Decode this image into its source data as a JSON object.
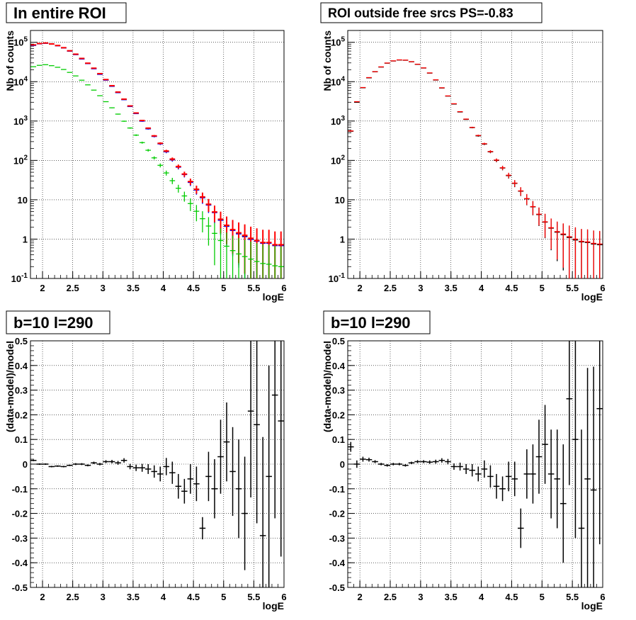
{
  "chart_data": [
    {
      "type": "histogram",
      "title": "In entire ROI",
      "xlabel": "logE",
      "ylabel": "Nb of counts",
      "xlim": [
        1.8,
        6.0
      ],
      "ylim": [
        0.1,
        200000
      ],
      "log_y": true,
      "grid": true,
      "x_ticks": [
        "2",
        "2.5",
        "3",
        "3.5",
        "4",
        "4.5",
        "5",
        "5.5",
        "6"
      ],
      "y_ticks": [
        "10^-1",
        "1",
        "10",
        "10^2",
        "10^3",
        "10^4",
        "10^5"
      ],
      "bin_width": 0.1,
      "x": [
        1.85,
        1.95,
        2.05,
        2.15,
        2.25,
        2.35,
        2.45,
        2.55,
        2.65,
        2.75,
        2.85,
        2.95,
        3.05,
        3.15,
        3.25,
        3.35,
        3.45,
        3.55,
        3.65,
        3.75,
        3.85,
        3.95,
        4.05,
        4.15,
        4.25,
        4.35,
        4.45,
        4.55,
        4.65,
        4.75,
        4.85,
        4.95,
        5.05,
        5.15,
        5.25,
        5.35,
        5.45,
        5.55,
        5.65,
        5.75,
        5.85,
        5.95
      ],
      "series": [
        {
          "color": "#000000",
          "values": [
            85000,
            92000,
            95000,
            90000,
            82000,
            72000,
            60000,
            49000,
            38000,
            29000,
            21500,
            15500,
            11000,
            7700,
            5300,
            3500,
            2350,
            1550,
            1000,
            640,
            410,
            265,
            168,
            105,
            68,
            44,
            28,
            18,
            11.5,
            7.5,
            4.8,
            3.1,
            2.2,
            1.7,
            1.4,
            1.2,
            1.0,
            0.9,
            0.8,
            0.8,
            0.7,
            0.7
          ]
        },
        {
          "color": "#0000ff",
          "values": [
            83000,
            91000,
            94000,
            89500,
            81500,
            71500,
            59500,
            48500,
            37500,
            28700,
            21200,
            15300,
            10900,
            7600,
            5250,
            3480,
            2330,
            1540,
            990,
            630,
            405,
            262,
            165,
            103,
            67,
            43.5,
            27.5,
            17.6,
            11.2,
            7.3,
            4.7,
            3.0,
            2.1,
            1.65,
            1.35,
            1.15,
            0.98,
            0.88,
            0.78,
            0.78,
            0.68,
            0.68
          ]
        },
        {
          "color": "#ff0000",
          "values": [
            86000,
            93000,
            96000,
            91000,
            83000,
            73000,
            61000,
            50000,
            39000,
            29500,
            22000,
            16000,
            11300,
            7900,
            5450,
            3600,
            2420,
            1600,
            1030,
            660,
            420,
            272,
            173,
            108,
            70,
            45,
            29,
            18.5,
            11.8,
            7.7,
            4.9,
            3.2,
            2.25,
            1.75,
            1.45,
            1.25,
            1.05,
            0.92,
            0.82,
            0.82,
            0.72,
            0.72
          ]
        },
        {
          "color": "#00cc00",
          "values": [
            24000,
            26000,
            27000,
            25500,
            23200,
            20400,
            17200,
            14000,
            10900,
            8300,
            6100,
            4400,
            3100,
            2170,
            1500,
            990,
            665,
            438,
            283,
            181,
            116,
            75,
            48,
            30.5,
            19.6,
            12.5,
            8.0,
            5.1,
            3.3,
            2.15,
            1.4,
            0.92,
            0.66,
            0.51,
            0.42,
            0.36,
            0.31,
            0.27,
            0.24,
            0.23,
            0.21,
            0.2
          ]
        }
      ]
    },
    {
      "type": "histogram",
      "title": "ROI outside free srcs PS=-0.83",
      "xlabel": "logE",
      "ylabel": "Nb of counts",
      "xlim": [
        1.8,
        6.0
      ],
      "ylim": [
        0.1,
        200000
      ],
      "log_y": true,
      "grid": true,
      "x_ticks": [
        "2",
        "2.5",
        "3",
        "3.5",
        "4",
        "4.5",
        "5",
        "5.5",
        "6"
      ],
      "y_ticks": [
        "10^-1",
        "1",
        "10",
        "10^2",
        "10^3",
        "10^4",
        "10^5"
      ],
      "bin_width": 0.1,
      "x": [
        1.85,
        1.95,
        2.05,
        2.15,
        2.25,
        2.35,
        2.45,
        2.55,
        2.65,
        2.75,
        2.85,
        2.95,
        3.05,
        3.15,
        3.25,
        3.35,
        3.45,
        3.55,
        3.65,
        3.75,
        3.85,
        3.95,
        4.05,
        4.15,
        4.25,
        4.35,
        4.45,
        4.55,
        4.65,
        4.75,
        4.85,
        4.95,
        5.05,
        5.15,
        5.25,
        5.35,
        5.45,
        5.55,
        5.65,
        5.75,
        5.85,
        5.95
      ],
      "series": [
        {
          "color": "#000000",
          "values": [
            550,
            3000,
            7000,
            12500,
            17800,
            23500,
            29500,
            33500,
            35500,
            35000,
            32000,
            27500,
            22200,
            16500,
            11000,
            6900,
            4300,
            2700,
            1700,
            1100,
            680,
            420,
            260,
            165,
            100,
            64,
            41,
            26,
            16.5,
            10.5,
            6.6,
            4.2,
            2.7,
            1.9,
            1.5,
            1.3,
            1.1,
            0.95,
            0.85,
            0.82,
            0.75,
            0.72
          ]
        },
        {
          "color": "#ff0000",
          "values": [
            560,
            3100,
            7100,
            12700,
            18000,
            23800,
            29800,
            33800,
            35800,
            35300,
            32300,
            27800,
            22400,
            16700,
            11150,
            7000,
            4350,
            2750,
            1730,
            1120,
            690,
            430,
            265,
            168,
            102,
            65,
            42,
            26.5,
            16.8,
            10.7,
            6.7,
            4.3,
            2.75,
            1.95,
            1.55,
            1.35,
            1.15,
            1.0,
            0.88,
            0.85,
            0.78,
            0.75
          ]
        }
      ]
    },
    {
      "type": "histogram",
      "title": "b=10 l=290",
      "xlabel": "logE",
      "ylabel": "(data-model)/model",
      "xlim": [
        1.8,
        6.0
      ],
      "ylim": [
        -0.5,
        0.5
      ],
      "grid": true,
      "x_ticks": [
        "2",
        "2.5",
        "3",
        "3.5",
        "4",
        "4.5",
        "5",
        "5.5",
        "6"
      ],
      "y_ticks": [
        "-0.5",
        "-0.4",
        "-0.3",
        "-0.2",
        "-0.1",
        "0",
        "0.1",
        "0.2",
        "0.3",
        "0.4",
        "0.5"
      ],
      "bin_width": 0.1,
      "x": [
        1.85,
        1.95,
        2.05,
        2.15,
        2.25,
        2.35,
        2.45,
        2.55,
        2.65,
        2.75,
        2.85,
        2.95,
        3.05,
        3.15,
        3.25,
        3.35,
        3.45,
        3.55,
        3.65,
        3.75,
        3.85,
        3.95,
        4.05,
        4.15,
        4.25,
        4.35,
        4.45,
        4.55,
        4.65,
        4.75,
        4.85,
        4.95,
        5.05,
        5.15,
        5.25,
        5.35,
        5.45,
        5.55,
        5.65,
        5.75,
        5.85,
        5.95
      ],
      "values": [
        0.015,
        0.0,
        0.0,
        -0.01,
        -0.008,
        -0.01,
        -0.005,
        0.0,
        0.0,
        -0.005,
        0.005,
        0.0,
        0.01,
        0.01,
        0.005,
        0.015,
        -0.01,
        -0.015,
        -0.015,
        -0.02,
        -0.03,
        -0.04,
        -0.01,
        -0.035,
        -0.09,
        -0.11,
        -0.06,
        -0.08,
        -0.26,
        -0.05,
        -0.1,
        0.03,
        0.09,
        -0.03,
        -0.1,
        -0.2,
        0.215,
        0.16,
        -0.29,
        -0.05,
        0.28,
        0.175
      ],
      "errors": [
        0.003,
        0.003,
        0.003,
        0.003,
        0.003,
        0.003,
        0.003,
        0.004,
        0.004,
        0.004,
        0.005,
        0.005,
        0.006,
        0.007,
        0.008,
        0.009,
        0.011,
        0.013,
        0.016,
        0.02,
        0.025,
        0.03,
        0.035,
        0.045,
        0.05,
        0.05,
        0.06,
        0.07,
        0.045,
        0.1,
        0.12,
        0.15,
        0.16,
        0.18,
        0.2,
        0.23,
        0.35,
        0.4,
        0.4,
        0.45,
        0.5,
        0.55
      ]
    },
    {
      "type": "histogram",
      "title": "b=10 l=290",
      "xlabel": "logE",
      "ylabel": "(data-model)/model",
      "xlim": [
        1.8,
        6.0
      ],
      "ylim": [
        -0.5,
        0.5
      ],
      "grid": true,
      "x_ticks": [
        "2",
        "2.5",
        "3",
        "3.5",
        "4",
        "4.5",
        "5",
        "5.5",
        "6"
      ],
      "y_ticks": [
        "-0.5",
        "-0.4",
        "-0.3",
        "-0.2",
        "-0.1",
        "0",
        "0.1",
        "0.2",
        "0.3",
        "0.4",
        "0.5"
      ],
      "bin_width": 0.1,
      "x": [
        1.85,
        1.95,
        2.05,
        2.15,
        2.25,
        2.35,
        2.45,
        2.55,
        2.65,
        2.75,
        2.85,
        2.95,
        3.05,
        3.15,
        3.25,
        3.35,
        3.45,
        3.55,
        3.65,
        3.75,
        3.85,
        3.95,
        4.05,
        4.15,
        4.25,
        4.35,
        4.45,
        4.55,
        4.65,
        4.75,
        4.85,
        4.95,
        5.05,
        5.15,
        5.25,
        5.35,
        5.45,
        5.55,
        5.65,
        5.75,
        5.85,
        5.95
      ],
      "values": [
        0.07,
        0.0,
        0.02,
        0.018,
        0.01,
        0.0,
        -0.005,
        0.0,
        0.0,
        -0.005,
        0.005,
        0.01,
        0.01,
        0.008,
        0.01,
        0.015,
        0.01,
        -0.01,
        -0.01,
        -0.02,
        -0.025,
        -0.04,
        -0.02,
        -0.05,
        -0.09,
        -0.1,
        -0.05,
        -0.06,
        -0.26,
        -0.04,
        -0.04,
        0.03,
        0.08,
        -0.04,
        -0.06,
        -0.16,
        0.265,
        0.1,
        -0.26,
        -0.06,
        -0.105,
        0.225
      ],
      "errors": [
        0.02,
        0.015,
        0.01,
        0.008,
        0.006,
        0.005,
        0.005,
        0.005,
        0.005,
        0.005,
        0.005,
        0.006,
        0.006,
        0.007,
        0.008,
        0.009,
        0.011,
        0.013,
        0.016,
        0.02,
        0.025,
        0.03,
        0.035,
        0.045,
        0.05,
        0.05,
        0.06,
        0.07,
        0.08,
        0.1,
        0.12,
        0.15,
        0.16,
        0.18,
        0.2,
        0.24,
        0.35,
        0.4,
        0.4,
        0.45,
        0.5,
        0.55
      ]
    }
  ]
}
